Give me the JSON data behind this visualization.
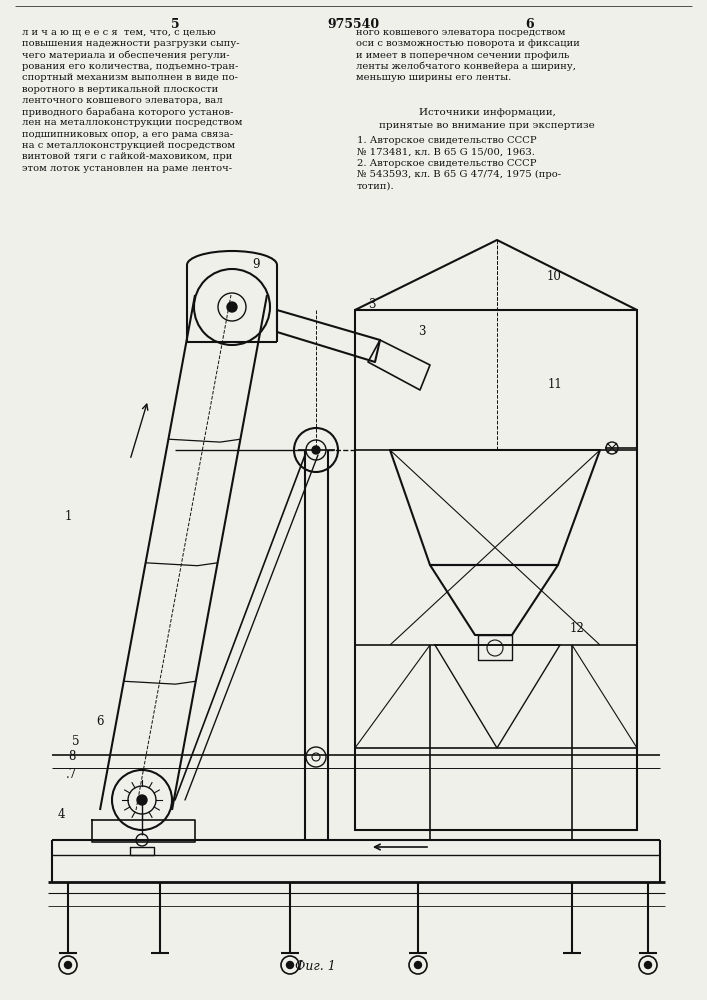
{
  "bg_color": "#f0f0eb",
  "lc": "#111111",
  "page_left": "5",
  "patent_no": "975540",
  "page_right": "6",
  "left_col_lines": [
    "л и ч а ю щ е е с я  тем, что, с целью",
    "повышения надежности разгрузки сыпу-",
    "чего материала и обеспечения регули-",
    "рования его количества, подъемно-тран-",
    "спортный механизм выполнен в виде по-",
    "воротного в вертикальной плоскости",
    "ленточного ковшевого элеватора, вал",
    "приводного барабана которого установ-",
    "лен на металлоконструкции посредством",
    "подшипниковых опор, а его рама связа-",
    "на с металлоконструкцией посредством",
    "винтовой тяги с гайкой-маховиком, при",
    "этом лоток установлен на раме ленточ-"
  ],
  "right_col_lines": [
    "ного ковшевого элеватора посредством",
    "оси с возможностью поворота и фиксации",
    "и имеет в поперечном сечении профиль",
    "ленты желобчатого конвейера а ширину,",
    "меньшую ширины его ленты."
  ],
  "sources_title": "Источники информации,",
  "sources_subtitle": "принятые во внимание при экспертизе",
  "src1": [
    "1. Авторское свидетельство СССР",
    "№ 173481, кл. В 65 G 15/00, 1963."
  ],
  "src2": [
    "2. Авторское свидетельство СССР",
    "№ 543593, кл. В 65 G 47/74, 1975 (про-",
    "тотип)."
  ],
  "fig_caption": "Фиг. 1"
}
